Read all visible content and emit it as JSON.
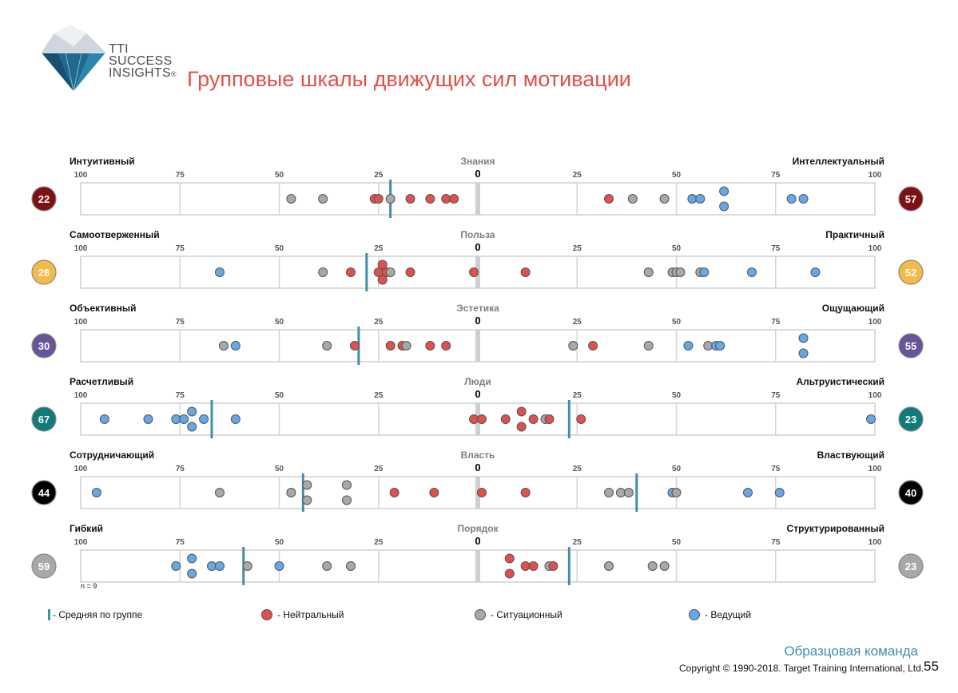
{
  "header": {
    "logo_lines": [
      "TTI",
      "SUCCESS",
      "INSIGHTS"
    ],
    "logo_mark": "®",
    "title": "Групповые шкалы движущих сил мотивации"
  },
  "colors": {
    "neutral": "#e0504c",
    "situational": "#a8a8a8",
    "leading": "#64a8e8",
    "mean_line": "#3f8eaa",
    "center_bar": "#cfcfcf"
  },
  "chart_data": {
    "type": "scatter",
    "axis": {
      "center": 0,
      "left_max": 100,
      "right_max": 100,
      "ticks": [
        "100",
        "75",
        "50",
        "25",
        "0",
        "25",
        "50",
        "75",
        "100"
      ]
    },
    "n_label": "n = 9",
    "rows": [
      {
        "name": "Знания",
        "left_label": "Интуитивный",
        "right_label": "Интеллектуальный",
        "left_score": "22",
        "right_score": "57",
        "left_color": "#7d1015",
        "right_color": "#7d1015",
        "mean": -22,
        "points": [
          {
            "v": -47,
            "t": "s"
          },
          {
            "v": -39,
            "t": "s"
          },
          {
            "v": -26,
            "t": "n"
          },
          {
            "v": -25,
            "t": "n"
          },
          {
            "v": -22,
            "t": "s"
          },
          {
            "v": -17,
            "t": "n"
          },
          {
            "v": -12,
            "t": "n"
          },
          {
            "v": -8,
            "t": "n"
          },
          {
            "v": -6,
            "t": "n"
          },
          {
            "v": 33,
            "t": "n"
          },
          {
            "v": 39,
            "t": "s"
          },
          {
            "v": 47,
            "t": "s"
          },
          {
            "v": 54,
            "t": "l"
          },
          {
            "v": 56,
            "t": "l"
          },
          {
            "v": 62,
            "t": "l",
            "o": -1
          },
          {
            "v": 62,
            "t": "l",
            "o": 1
          },
          {
            "v": 79,
            "t": "l"
          },
          {
            "v": 82,
            "t": "l"
          }
        ]
      },
      {
        "name": "Польза",
        "left_label": "Самоотверженный",
        "right_label": "Практичный",
        "left_score": "28",
        "right_score": "52",
        "left_color": "#f5b945",
        "right_color": "#f5b945",
        "mean": -28,
        "points": [
          {
            "v": -65,
            "t": "l"
          },
          {
            "v": -39,
            "t": "s"
          },
          {
            "v": -32,
            "t": "n"
          },
          {
            "v": -24,
            "t": "n",
            "o": -1
          },
          {
            "v": -25,
            "t": "n"
          },
          {
            "v": -23,
            "t": "n"
          },
          {
            "v": -24,
            "t": "n",
            "o": 1
          },
          {
            "v": -22,
            "t": "s"
          },
          {
            "v": -17,
            "t": "n"
          },
          {
            "v": -1,
            "t": "n"
          },
          {
            "v": 12,
            "t": "n"
          },
          {
            "v": 43,
            "t": "s"
          },
          {
            "v": 49,
            "t": "s"
          },
          {
            "v": 50,
            "t": "s"
          },
          {
            "v": 51,
            "t": "s"
          },
          {
            "v": 56,
            "t": "s"
          },
          {
            "v": 57,
            "t": "l"
          },
          {
            "v": 69,
            "t": "l"
          },
          {
            "v": 85,
            "t": "l"
          }
        ]
      },
      {
        "name": "Эстетика",
        "left_label": "Объективный",
        "right_label": "Ощущающий",
        "left_score": "30",
        "right_score": "55",
        "left_color": "#67549a",
        "right_color": "#67549a",
        "mean": -30,
        "points": [
          {
            "v": -64,
            "t": "s"
          },
          {
            "v": -61,
            "t": "l"
          },
          {
            "v": -38,
            "t": "s"
          },
          {
            "v": -31,
            "t": "n"
          },
          {
            "v": -22,
            "t": "n"
          },
          {
            "v": -19,
            "t": "n"
          },
          {
            "v": -18,
            "t": "s"
          },
          {
            "v": -12,
            "t": "n"
          },
          {
            "v": -8,
            "t": "n"
          },
          {
            "v": 24,
            "t": "s"
          },
          {
            "v": 29,
            "t": "n"
          },
          {
            "v": 43,
            "t": "s"
          },
          {
            "v": 53,
            "t": "l"
          },
          {
            "v": 58,
            "t": "s"
          },
          {
            "v": 60,
            "t": "l"
          },
          {
            "v": 61,
            "t": "l"
          },
          {
            "v": 82,
            "t": "l",
            "o": -1
          },
          {
            "v": 82,
            "t": "l",
            "o": 1
          }
        ]
      },
      {
        "name": "Люди",
        "left_label": "Расчетливый",
        "right_label": "Альтруистический",
        "left_score": "67",
        "right_score": "23",
        "left_color": "#117a7a",
        "right_color": "#117a7a",
        "mean": 23,
        "mean_left": -67,
        "points": [
          {
            "v": -94,
            "t": "l"
          },
          {
            "v": -83,
            "t": "l"
          },
          {
            "v": -76,
            "t": "l"
          },
          {
            "v": -74,
            "t": "l"
          },
          {
            "v": -72,
            "t": "l",
            "o": -1
          },
          {
            "v": -72,
            "t": "l",
            "o": 1
          },
          {
            "v": -69,
            "t": "l"
          },
          {
            "v": -61,
            "t": "l"
          },
          {
            "v": -1,
            "t": "n"
          },
          {
            "v": 1,
            "t": "n"
          },
          {
            "v": 7,
            "t": "n"
          },
          {
            "v": 11,
            "t": "n",
            "o": -1
          },
          {
            "v": 11,
            "t": "n",
            "o": 1
          },
          {
            "v": 14,
            "t": "n"
          },
          {
            "v": 17,
            "t": "s"
          },
          {
            "v": 18,
            "t": "n"
          },
          {
            "v": 26,
            "t": "n"
          },
          {
            "v": 99,
            "t": "l"
          }
        ]
      },
      {
        "name": "Власть",
        "left_label": "Сотрудничающий",
        "right_label": "Властвующий",
        "left_score": "44",
        "right_score": "40",
        "left_color": "#000000",
        "right_color": "#000000",
        "mean": 40,
        "mean_left": -44,
        "points": [
          {
            "v": -96,
            "t": "l"
          },
          {
            "v": -65,
            "t": "s"
          },
          {
            "v": -47,
            "t": "s"
          },
          {
            "v": -43,
            "t": "s",
            "o": -1
          },
          {
            "v": -43,
            "t": "s",
            "o": 1
          },
          {
            "v": -33,
            "t": "s",
            "o": -1
          },
          {
            "v": -33,
            "t": "s",
            "o": 1
          },
          {
            "v": -21,
            "t": "n"
          },
          {
            "v": -11,
            "t": "n"
          },
          {
            "v": 1,
            "t": "n"
          },
          {
            "v": 12,
            "t": "n"
          },
          {
            "v": 33,
            "t": "s"
          },
          {
            "v": 36,
            "t": "s"
          },
          {
            "v": 38,
            "t": "s"
          },
          {
            "v": 49,
            "t": "l"
          },
          {
            "v": 50,
            "t": "s"
          },
          {
            "v": 68,
            "t": "l"
          },
          {
            "v": 76,
            "t": "l"
          }
        ]
      },
      {
        "name": "Порядок",
        "left_label": "Гибкий",
        "right_label": "Структурированный",
        "left_score": "59",
        "right_score": "23",
        "left_color": "#a8a8a8",
        "right_color": "#a8a8a8",
        "mean": 23,
        "mean_left": -59,
        "points": [
          {
            "v": -76,
            "t": "l"
          },
          {
            "v": -72,
            "t": "l",
            "o": -1
          },
          {
            "v": -72,
            "t": "l",
            "o": 1
          },
          {
            "v": -67,
            "t": "l"
          },
          {
            "v": -65,
            "t": "l"
          },
          {
            "v": -58,
            "t": "s"
          },
          {
            "v": -50,
            "t": "l"
          },
          {
            "v": -38,
            "t": "s"
          },
          {
            "v": -32,
            "t": "s"
          },
          {
            "v": 8,
            "t": "n",
            "o": -1
          },
          {
            "v": 8,
            "t": "n",
            "o": 1
          },
          {
            "v": 12,
            "t": "n"
          },
          {
            "v": 14,
            "t": "n"
          },
          {
            "v": 18,
            "t": "s"
          },
          {
            "v": 19,
            "t": "n"
          },
          {
            "v": 33,
            "t": "s"
          },
          {
            "v": 44,
            "t": "s"
          },
          {
            "v": 47,
            "t": "s"
          }
        ]
      }
    ]
  },
  "legend": {
    "mean": "- Средняя по группе",
    "neutral": "- Нейтральный",
    "situational": "- Ситуационный",
    "leading": "- Ведущий"
  },
  "footer": {
    "team": "Образцовая команда",
    "copyright": "Copyright © 1990-2018. Target Training International, Ltd.",
    "page": "55"
  }
}
